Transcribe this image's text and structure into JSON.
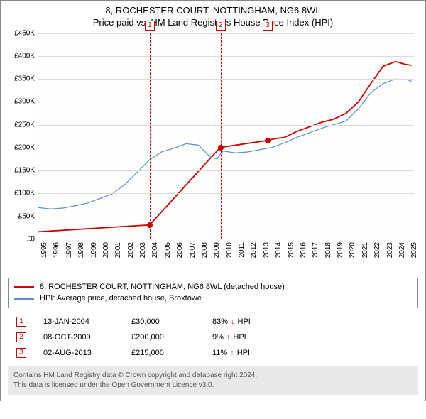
{
  "title_line1": "8, ROCHESTER COURT, NOTTINGHAM, NG6 8WL",
  "title_line2": "Price paid vs. HM Land Registry's House Price Index (HPI)",
  "chart": {
    "type": "line",
    "background_color": "#fefefd",
    "grid_color": "#dcdcdc",
    "axis_color": "#000000",
    "xlim": [
      1995,
      2025.5
    ],
    "ylim": [
      0,
      450000
    ],
    "ytick_step": 50000,
    "ytick_labels": [
      "£0",
      "£50K",
      "£100K",
      "£150K",
      "£200K",
      "£250K",
      "£300K",
      "£350K",
      "£400K",
      "£450K"
    ],
    "xtick_years": [
      1995,
      1996,
      1997,
      1998,
      1999,
      2000,
      2001,
      2002,
      2003,
      2004,
      2005,
      2006,
      2007,
      2008,
      2009,
      2010,
      2011,
      2012,
      2013,
      2014,
      2015,
      2016,
      2017,
      2018,
      2019,
      2020,
      2021,
      2022,
      2023,
      2024,
      2025
    ],
    "series": [
      {
        "name": "property",
        "label": "8, ROCHESTER COURT, NOTTINGHAM, NG6 8WL (detached house)",
        "color": "#cc0000",
        "width": 1.8,
        "data": [
          [
            1995,
            15000
          ],
          [
            2004.03,
            30000
          ],
          [
            2004.04,
            30000
          ],
          [
            2009.77,
            200000
          ],
          [
            2013.58,
            215000
          ],
          [
            2014,
            218000
          ],
          [
            2015,
            222000
          ],
          [
            2016,
            235000
          ],
          [
            2017,
            245000
          ],
          [
            2018,
            255000
          ],
          [
            2019,
            262000
          ],
          [
            2020,
            275000
          ],
          [
            2021,
            300000
          ],
          [
            2022,
            340000
          ],
          [
            2023,
            378000
          ],
          [
            2024,
            388000
          ],
          [
            2024.8,
            382000
          ],
          [
            2025.3,
            380000
          ]
        ]
      },
      {
        "name": "hpi",
        "label": "HPI: Average price, detached house, Broxtowe",
        "color": "#5b8fd6",
        "width": 1.2,
        "data": [
          [
            1995,
            68000
          ],
          [
            1996,
            65000
          ],
          [
            1997,
            67000
          ],
          [
            1998,
            72000
          ],
          [
            1999,
            78000
          ],
          [
            2000,
            88000
          ],
          [
            2001,
            98000
          ],
          [
            2002,
            118000
          ],
          [
            2003,
            145000
          ],
          [
            2004,
            172000
          ],
          [
            2005,
            190000
          ],
          [
            2006,
            198000
          ],
          [
            2007,
            208000
          ],
          [
            2008,
            205000
          ],
          [
            2009,
            178000
          ],
          [
            2009.5,
            175000
          ],
          [
            2010,
            192000
          ],
          [
            2011,
            188000
          ],
          [
            2012,
            190000
          ],
          [
            2013,
            195000
          ],
          [
            2014,
            200000
          ],
          [
            2015,
            210000
          ],
          [
            2016,
            222000
          ],
          [
            2017,
            232000
          ],
          [
            2018,
            242000
          ],
          [
            2019,
            250000
          ],
          [
            2020,
            258000
          ],
          [
            2021,
            285000
          ],
          [
            2022,
            320000
          ],
          [
            2023,
            340000
          ],
          [
            2024,
            350000
          ],
          [
            2025,
            348000
          ],
          [
            2025.3,
            345000
          ]
        ]
      }
    ],
    "sale_markers": [
      {
        "idx": "1",
        "year": 2004.03,
        "price": 30000
      },
      {
        "idx": "2",
        "year": 2009.77,
        "price": 200000
      },
      {
        "idx": "3",
        "year": 2013.58,
        "price": 215000
      }
    ]
  },
  "legend_red": "8, ROCHESTER COURT, NOTTINGHAM, NG6 8WL (detached house)",
  "legend_blue": "HPI: Average price, detached house, Broxtowe",
  "sales": [
    {
      "idx": "1",
      "date": "13-JAN-2004",
      "price": "£30,000",
      "delta": "83%",
      "arrow": "↓",
      "arrow_color": "#cc3333",
      "suffix": "HPI"
    },
    {
      "idx": "2",
      "date": "08-OCT-2009",
      "price": "£200,000",
      "delta": "9%",
      "arrow": "↑",
      "arrow_color": "#2a8a2a",
      "suffix": "HPI"
    },
    {
      "idx": "3",
      "date": "02-AUG-2013",
      "price": "£215,000",
      "delta": "11%",
      "arrow": "↑",
      "arrow_color": "#2a8a2a",
      "suffix": "HPI"
    }
  ],
  "footer_line1": "Contains HM Land Registry data © Crown copyright and database right 2024.",
  "footer_line2": "This data is licensed under the Open Government Licence v3.0."
}
